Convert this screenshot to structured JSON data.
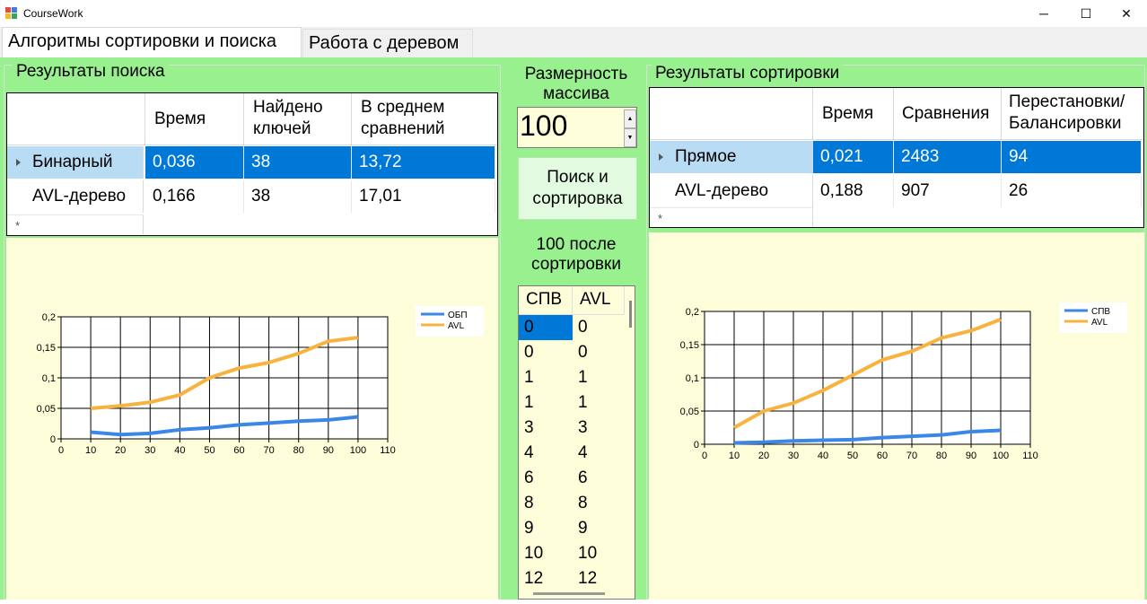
{
  "window": {
    "title": "CourseWork",
    "minimize": "─",
    "maximize": "☐",
    "close": "✕"
  },
  "tabs": [
    {
      "label": "Алгоритмы сортировки и поиска"
    },
    {
      "label": "Работа с деревом"
    }
  ],
  "search": {
    "group_title": "Результаты поиска",
    "columns": [
      "Время",
      "Найдено ключей",
      "В среднем сравнений"
    ],
    "rows": [
      {
        "name": "Бинарный",
        "cells": [
          "0,036",
          "38",
          "13,72"
        ]
      },
      {
        "name": "AVL-дерево",
        "cells": [
          "0,166",
          "38",
          "17,01"
        ]
      }
    ],
    "new_row_marker": "*"
  },
  "middle": {
    "size_label": "Размерность массива",
    "size_value": "100",
    "spin_up": "▲",
    "spin_down": "▼",
    "button_label": "Поиск и сортировка",
    "after_label": "100 после сортировки",
    "list_headers": [
      "СПВ",
      "AVL"
    ],
    "list_rows": [
      [
        "0",
        "0"
      ],
      [
        "0",
        "0"
      ],
      [
        "1",
        "1"
      ],
      [
        "1",
        "1"
      ],
      [
        "3",
        "3"
      ],
      [
        "4",
        "4"
      ],
      [
        "6",
        "6"
      ],
      [
        "8",
        "8"
      ],
      [
        "9",
        "9"
      ],
      [
        "10",
        "10"
      ],
      [
        "12",
        "12"
      ]
    ]
  },
  "sort": {
    "group_title": "Результаты сортировки",
    "columns": [
      "Время",
      "Сравнения",
      "Перестановки/ Балансировки"
    ],
    "rows": [
      {
        "name": "Прямое",
        "cells": [
          "0,021",
          "2483",
          "94"
        ]
      },
      {
        "name": "AVL-дерево",
        "cells": [
          "0,188",
          "907",
          "26"
        ]
      }
    ],
    "new_row_marker": "*"
  },
  "colors": {
    "page_bg": "#98f08f",
    "chart_bg": "#fdfdd9",
    "selection": "#0078d7",
    "series_blue": "#3a87e8",
    "series_orange": "#f8b33e"
  },
  "chart_data": [
    {
      "type": "line",
      "x": [
        10,
        20,
        30,
        40,
        50,
        60,
        70,
        80,
        90,
        100
      ],
      "series": [
        {
          "name": "ОБП",
          "values": [
            0.011,
            0.007,
            0.009,
            0.015,
            0.018,
            0.023,
            0.026,
            0.029,
            0.031,
            0.036
          ]
        },
        {
          "name": "AVL",
          "values": [
            0.05,
            0.054,
            0.06,
            0.072,
            0.1,
            0.116,
            0.125,
            0.14,
            0.16,
            0.166
          ]
        }
      ],
      "xlim": [
        0,
        110
      ],
      "ylim": [
        0,
        0.2
      ],
      "xticks": [
        "0",
        "10",
        "20",
        "30",
        "40",
        "50",
        "60",
        "70",
        "80",
        "90",
        "100",
        "110"
      ],
      "yticks": [
        "0",
        "0,05",
        "0,1",
        "0,15",
        "0,2"
      ],
      "grid": true,
      "legend": "top-right"
    },
    {
      "type": "line",
      "x": [
        10,
        20,
        30,
        40,
        50,
        60,
        70,
        80,
        90,
        100
      ],
      "series": [
        {
          "name": "СПВ",
          "values": [
            0.002,
            0.003,
            0.005,
            0.006,
            0.007,
            0.01,
            0.012,
            0.014,
            0.019,
            0.021
          ]
        },
        {
          "name": "AVL",
          "values": [
            0.025,
            0.05,
            0.062,
            0.081,
            0.104,
            0.127,
            0.14,
            0.16,
            0.171,
            0.188
          ]
        }
      ],
      "xlim": [
        0,
        110
      ],
      "ylim": [
        0,
        0.2
      ],
      "xticks": [
        "0",
        "10",
        "20",
        "30",
        "40",
        "50",
        "60",
        "70",
        "80",
        "90",
        "100",
        "110"
      ],
      "yticks": [
        "0",
        "0,05",
        "0,1",
        "0,15",
        "0,2"
      ],
      "grid": true,
      "legend": "top-right"
    }
  ]
}
